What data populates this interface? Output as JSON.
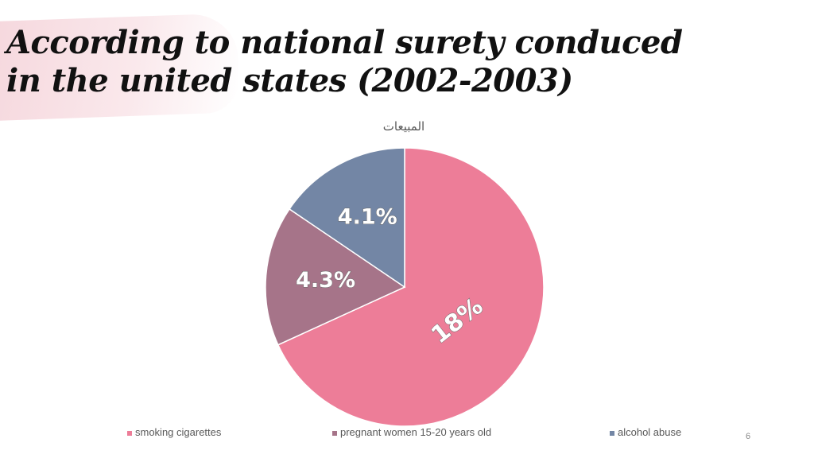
{
  "slide": {
    "title_line1": "According to national surety conduced",
    "title_line2": "in the united states (2002-2003)",
    "page_number": "6"
  },
  "chart_data": {
    "type": "pie",
    "title": "المبيعات",
    "start_angle_deg": 0,
    "direction": "clockwise",
    "legend_position": "bottom",
    "slices": [
      {
        "name": "smoking cigarettes",
        "value": 18,
        "label": "18%",
        "color": "#ED7D98"
      },
      {
        "name": "pregnant women 15-20 years old",
        "value": 4.3,
        "label": "4.3%",
        "color": "#A67489"
      },
      {
        "name": "alcohol abuse",
        "value": 4.1,
        "label": "4.1%",
        "color": "#7386A5"
      }
    ]
  }
}
